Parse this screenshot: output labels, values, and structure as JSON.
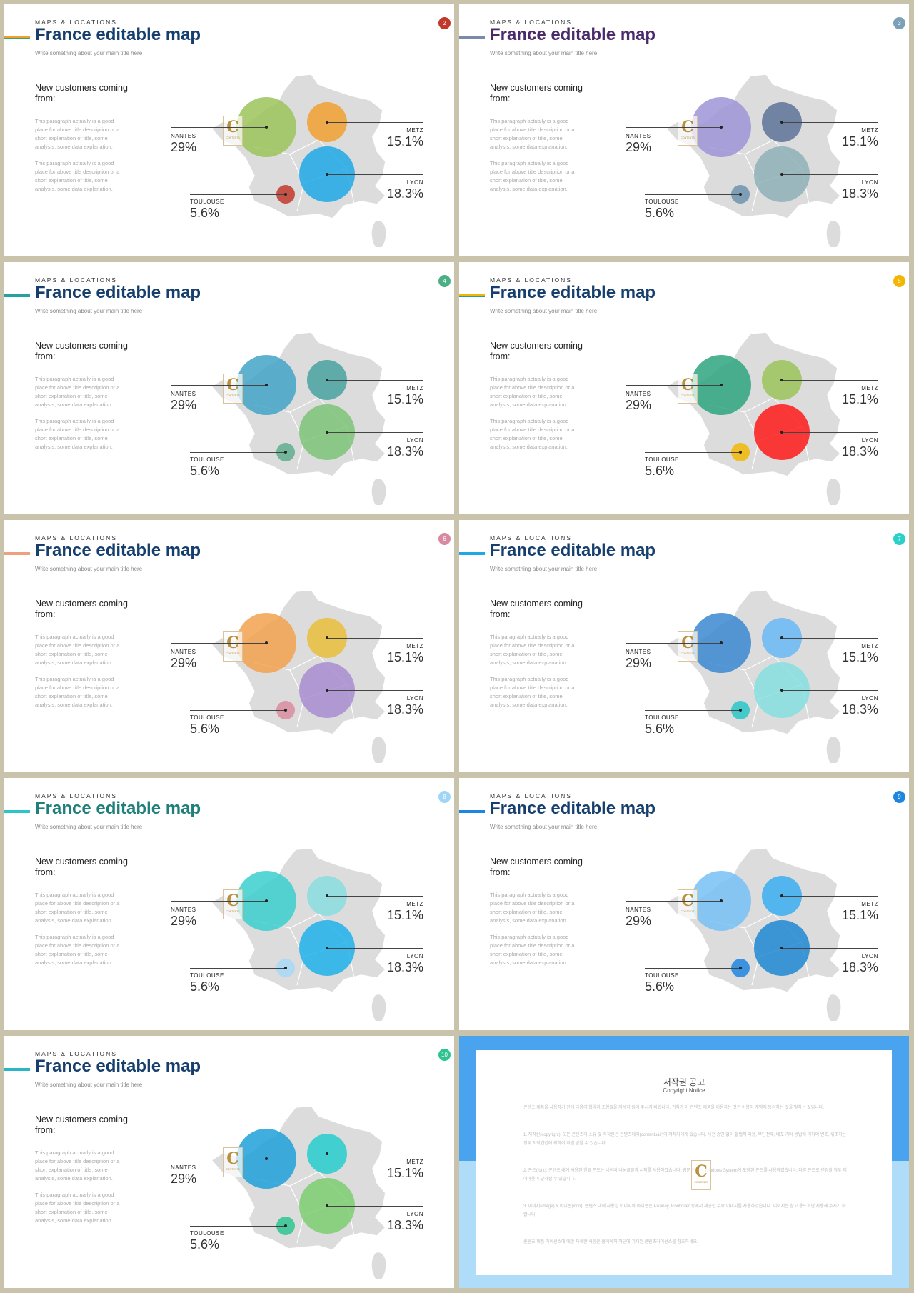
{
  "slides": [
    {
      "kicker": "MAPS & LOCATIONS",
      "title": "France editable map",
      "subtitle": "Write something about your main title here",
      "page": "2",
      "lead": "New customers coming from:",
      "para1": "This paragraph actually is a good place for above title description or a short explanation of title, some analysis, some data explanation.",
      "para2": "This paragraph actually is a good place for above title description or a short explanation of title, some analysis, some data explanation.",
      "cities": {
        "nantes": "NANTES",
        "metz": "METZ",
        "lyon": "LYON",
        "toulouse": "TOULOUSE"
      },
      "values": {
        "nantes": "29%",
        "metz": "15.1%",
        "lyon": "18.3%",
        "toulouse": "5.6%"
      },
      "logo": {
        "letter": "C",
        "sub": "CONTENTS"
      }
    },
    {
      "kicker": "MAPS & LOCATIONS",
      "title": "France editable map",
      "subtitle": "Write something about your main title here",
      "page": "3",
      "lead": "New customers coming from:",
      "para1": "This paragraph actually is a good place for above title description or a short explanation of title, some analysis, some data explanation.",
      "para2": "This paragraph actually is a good place for above title description or a short explanation of title, some analysis, some data explanation.",
      "cities": {
        "nantes": "NANTES",
        "metz": "METZ",
        "lyon": "LYON",
        "toulouse": "TOULOUSE"
      },
      "values": {
        "nantes": "29%",
        "metz": "15.1%",
        "lyon": "18.3%",
        "toulouse": "5.6%"
      },
      "logo": {
        "letter": "C",
        "sub": "CONTENTS"
      }
    },
    {
      "kicker": "MAPS & LOCATIONS",
      "title": "France editable map",
      "subtitle": "Write something about your main title here",
      "page": "4",
      "lead": "New customers coming from:",
      "para1": "This paragraph actually is a good place for above title description or a short explanation of title, some analysis, some data explanation.",
      "para2": "This paragraph actually is a good place for above title description or a short explanation of title, some analysis, some data explanation.",
      "cities": {
        "nantes": "NANTES",
        "metz": "METZ",
        "lyon": "LYON",
        "toulouse": "TOULOUSE"
      },
      "values": {
        "nantes": "29%",
        "metz": "15.1%",
        "lyon": "18.3%",
        "toulouse": "5.6%"
      },
      "logo": {
        "letter": "C",
        "sub": "CONTENTS"
      }
    },
    {
      "kicker": "MAPS & LOCATIONS",
      "title": "France editable map",
      "subtitle": "Write something about your main title here",
      "page": "5",
      "lead": "New customers coming from:",
      "para1": "This paragraph actually is a good place for above title description or a short explanation of title, some analysis, some data explanation.",
      "para2": "This paragraph actually is a good place for above title description or a short explanation of title, some analysis, some data explanation.",
      "cities": {
        "nantes": "NANTES",
        "metz": "METZ",
        "lyon": "LYON",
        "toulouse": "TOULOUSE"
      },
      "values": {
        "nantes": "29%",
        "metz": "15.1%",
        "lyon": "18.3%",
        "toulouse": "5.6%"
      },
      "logo": {
        "letter": "C",
        "sub": "CONTENTS"
      }
    },
    {
      "kicker": "MAPS & LOCATIONS",
      "title": "France editable map",
      "subtitle": "Write something about your main title here",
      "page": "6",
      "lead": "New customers coming from:",
      "para1": "This paragraph actually is a good place for above title description or a short explanation of title, some analysis, some data explanation.",
      "para2": "This paragraph actually is a good place for above title description or a short explanation of title, some analysis, some data explanation.",
      "cities": {
        "nantes": "NANTES",
        "metz": "METZ",
        "lyon": "LYON",
        "toulouse": "TOULOUSE"
      },
      "values": {
        "nantes": "29%",
        "metz": "15.1%",
        "lyon": "18.3%",
        "toulouse": "5.6%"
      },
      "logo": {
        "letter": "C",
        "sub": "CONTENTS"
      }
    },
    {
      "kicker": "MAPS & LOCATIONS",
      "title": "France editable map",
      "subtitle": "Write something about your main title here",
      "page": "7",
      "lead": "New customers coming from:",
      "para1": "This paragraph actually is a good place for above title description or a short explanation of title, some analysis, some data explanation.",
      "para2": "This paragraph actually is a good place for above title description or a short explanation of title, some analysis, some data explanation.",
      "cities": {
        "nantes": "NANTES",
        "metz": "METZ",
        "lyon": "LYON",
        "toulouse": "TOULOUSE"
      },
      "values": {
        "nantes": "29%",
        "metz": "15.1%",
        "lyon": "18.3%",
        "toulouse": "5.6%"
      },
      "logo": {
        "letter": "C",
        "sub": "CONTENTS"
      }
    },
    {
      "kicker": "MAPS & LOCATIONS",
      "title": "France editable map",
      "subtitle": "Write something about your main title here",
      "page": "8",
      "lead": "New customers coming from:",
      "para1": "This paragraph actually is a good place for above title description or a short explanation of title, some analysis, some data explanation.",
      "para2": "This paragraph actually is a good place for above title description or a short explanation of title, some analysis, some data explanation.",
      "cities": {
        "nantes": "NANTES",
        "metz": "METZ",
        "lyon": "LYON",
        "toulouse": "TOULOUSE"
      },
      "values": {
        "nantes": "29%",
        "metz": "15.1%",
        "lyon": "18.3%",
        "toulouse": "5.6%"
      },
      "logo": {
        "letter": "C",
        "sub": "CONTENTS"
      }
    },
    {
      "kicker": "MAPS & LOCATIONS",
      "title": "France editable map",
      "subtitle": "Write something about your main title here",
      "page": "9",
      "lead": "New customers coming from:",
      "para1": "This paragraph actually is a good place for above title description or a short explanation of title, some analysis, some data explanation.",
      "para2": "This paragraph actually is a good place for above title description or a short explanation of title, some analysis, some data explanation.",
      "cities": {
        "nantes": "NANTES",
        "metz": "METZ",
        "lyon": "LYON",
        "toulouse": "TOULOUSE"
      },
      "values": {
        "nantes": "29%",
        "metz": "15.1%",
        "lyon": "18.3%",
        "toulouse": "5.6%"
      },
      "logo": {
        "letter": "C",
        "sub": "CONTENTS"
      }
    },
    {
      "kicker": "MAPS & LOCATIONS",
      "title": "France editable map",
      "subtitle": "Write something about your main title here",
      "page": "10",
      "lead": "New customers coming from:",
      "para1": "This paragraph actually is a good place for above title description or a short explanation of title, some analysis, some data explanation.",
      "para2": "This paragraph actually is a good place for above title description or a short explanation of title, some analysis, some data explanation.",
      "cities": {
        "nantes": "NANTES",
        "metz": "METZ",
        "lyon": "LYON",
        "toulouse": "TOULOUSE"
      },
      "values": {
        "nantes": "29%",
        "metz": "15.1%",
        "lyon": "18.3%",
        "toulouse": "5.6%"
      },
      "logo": {
        "letter": "C",
        "sub": "CONTENTS"
      }
    }
  ],
  "themes": [
    {
      "title_color": "#173f6e",
      "badge": "#c0392b",
      "accent": [
        "#f0a030",
        "#3aa860",
        "#c0392b"
      ],
      "nantes": "#9bc35a",
      "metz": "#f0a030",
      "lyon": "#1fa8e6",
      "toulouse": "#c0392b"
    },
    {
      "title_color": "#4a2a6a",
      "badge": "#7ba0b8",
      "accent": [
        "#7a8aaa",
        "#7a8aaa",
        "#7a8aaa"
      ],
      "nantes": "#9d94d6",
      "metz": "#5d7398",
      "lyon": "#8fb0b9",
      "toulouse": "#6c93ad"
    },
    {
      "title_color": "#173f6e",
      "badge": "#4caf86",
      "accent": [
        "#26a0a0",
        "#26a0a0",
        "#26a0a0"
      ],
      "nantes": "#42a4c7",
      "metz": "#48a2a0",
      "lyon": "#7cc478",
      "toulouse": "#5fae8e"
    },
    {
      "title_color": "#173f6e",
      "badge": "#f2b705",
      "accent": [
        "#f2b705",
        "#2f9e8e",
        "#f2b705"
      ],
      "nantes": "#2ea57e",
      "metz": "#9bc35a",
      "lyon": "#ff1a1a",
      "toulouse": "#f2b705"
    },
    {
      "title_color": "#173f6e",
      "badge": "#d88aa2",
      "accent": [
        "#f0a080",
        "#f0a080",
        "#f0a080"
      ],
      "nantes": "#f2a24f",
      "metz": "#e7be3a",
      "lyon": "#a88dd0",
      "toulouse": "#d98ca0"
    },
    {
      "title_color": "#173f6e",
      "badge": "#2bd0c8",
      "accent": [
        "#1fa8e6",
        "#1fa8e6",
        "#1fa8e6"
      ],
      "nantes": "#3b88d0",
      "metz": "#6ab9f5",
      "lyon": "#86dfe0",
      "toulouse": "#2bc6c8"
    },
    {
      "title_color": "#1f7f7a",
      "badge": "#9fd6f7",
      "accent": [
        "#2bc6c8",
        "#2bc6c8",
        "#2bc6c8"
      ],
      "nantes": "#3bcfcf",
      "metz": "#8adddf",
      "lyon": "#1fb0ea",
      "toulouse": "#a8d8f7"
    },
    {
      "title_color": "#173f6e",
      "badge": "#1f86e0",
      "accent": [
        "#1f86e0",
        "#1f86e0",
        "#1f86e0"
      ],
      "nantes": "#77c1f4",
      "metz": "#3aaef0",
      "lyon": "#1e88d2",
      "toulouse": "#1f86e0"
    },
    {
      "title_color": "#173f6e",
      "badge": "#2ec490",
      "accent": [
        "#2bb6c8",
        "#2bb6c8",
        "#2bb6c8"
      ],
      "nantes": "#1fa0d8",
      "metz": "#27cccc",
      "lyon": "#7ccd70",
      "toulouse": "#2ec490"
    }
  ],
  "copyright": {
    "title": "저작권 공고",
    "subtitle": "Copyright Notice",
    "intro": "콘텐츠 제품을 사용하기 전에 다음의 협약과 조항들을 자세히 읽어 주시기 바랍니다. 귀하가 이 콘텐츠 제품을 이용하는 것은 이용자 계약에 동의하는 것을 말하는 것입니다.",
    "item1": "1. 저작권(copyright): 모든 콘텐츠의 소유 및 저작권은 콘텐츠에어(contentsair)의 저작자에게 있습니다. 사전 승인 없이 불법적 이용, 무단전재, 배포 기타 방법에 의하여 변조, 위조하는 경우 저작권법에 의하여 처벌 받을 수 있습니다.",
    "item2": "2. 폰트(font): 콘텐츠 내에 사용된 한글 폰트는 네이버 나눔글꼴과 서체를 사용하였습니다. 영문 폰트는 Windows System에 포함된 폰트를 사용하였습니다. 다른 폰트로 변경할 경우 레이아웃이 달라질 수 있습니다.",
    "item3": "3. 이미지(image) & 아이콘(icon): 콘텐츠 내에 사용된 이미지와 아이콘은 Pixabay, Iconfinder 등에서 제공한 무료 이미지를 사용하였습니다. 이미지는 참고 용도로만 사용해 주시기 바랍니다.",
    "footer": "콘텐츠 제품 라이선스에 대한 자세한 사항은 홈페이지 하단에 기재된 콘텐츠라이선스를 참조하세요."
  }
}
